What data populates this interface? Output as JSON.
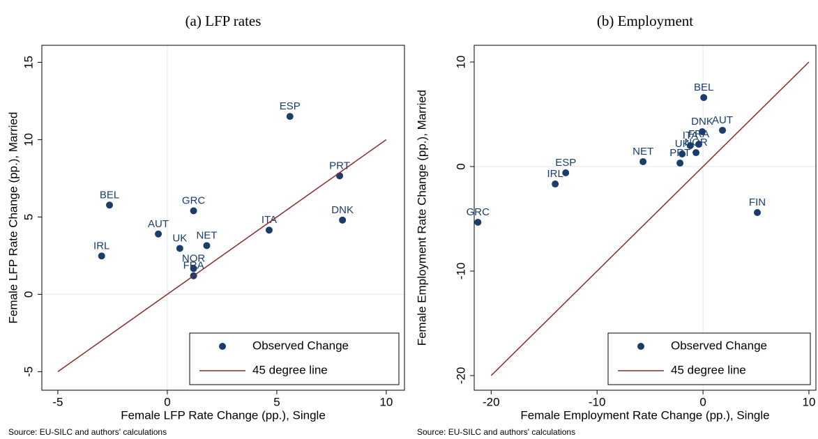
{
  "chart_data": [
    {
      "type": "scatter",
      "title": "(a) LFP rates",
      "xlabel": "Female LFP Rate Change (pp.), Single",
      "ylabel": "Female LFP Rate Change (pp.), Married",
      "note": "Source: EU-SILC and authors' calculations",
      "xlim": [
        -5.73,
        10.83
      ],
      "ylim": [
        -6.2,
        16.1
      ],
      "xticks": [
        -5,
        0,
        5,
        10
      ],
      "yticks": [
        -5,
        0,
        5,
        10,
        15
      ],
      "legend": "bottom-right",
      "series": [
        {
          "name": "Observed Change",
          "color": "#1a3d6b",
          "labels": [
            "ESP",
            "PRT",
            "DNK",
            "ITA",
            "BEL",
            "GRC",
            "AUT",
            "UK",
            "NET",
            "IRL",
            "NOR",
            "FRA"
          ],
          "x": [
            5.6,
            7.87,
            8.0,
            4.65,
            -2.64,
            1.2,
            -0.41,
            0.57,
            1.8,
            -3.0,
            1.2,
            1.2
          ],
          "values": [
            11.5,
            7.66,
            4.8,
            4.15,
            5.77,
            5.4,
            3.9,
            2.97,
            3.15,
            2.48,
            1.67,
            1.2
          ]
        },
        {
          "name": "45 degree line",
          "type": "line",
          "color": "#8b2a2a",
          "x": [
            -5,
            10
          ],
          "values": [
            -5,
            10
          ]
        }
      ]
    },
    {
      "type": "scatter",
      "title": "(b) Employment",
      "xlabel": "Female Employment Rate Change (pp.), Single",
      "ylabel": "Female Employment Rate Change (pp.), Married",
      "note": "Source: EU-SILC and authors' calculations",
      "xlim": [
        -21.6,
        10.66
      ],
      "ylim": [
        -21.4,
        11.6
      ],
      "xticks": [
        -20,
        -10,
        0,
        10
      ],
      "yticks": [
        -20,
        -10,
        0,
        10
      ],
      "legend": "bottom-right",
      "series": [
        {
          "name": "Observed Change",
          "color": "#1a3d6b",
          "labels": [
            "BEL",
            "DNK",
            "AUT",
            "ITA",
            "FRA",
            "UK",
            "NOR",
            "NET",
            "PRT",
            "ESP",
            "IRL",
            "GRC",
            "FIN"
          ],
          "x": [
            0.07,
            -0.07,
            1.84,
            -1.2,
            -0.4,
            -1.97,
            -0.66,
            -5.66,
            -2.17,
            -12.96,
            -13.95,
            -21.25,
            5.13
          ],
          "values": [
            6.6,
            3.33,
            3.47,
            2.0,
            2.13,
            1.2,
            1.33,
            0.47,
            0.33,
            -0.6,
            -1.67,
            -5.33,
            -4.4
          ]
        },
        {
          "name": "45 degree line",
          "type": "line",
          "color": "#8b2a2a",
          "x": [
            -20,
            10
          ],
          "values": [
            -20,
            10
          ]
        }
      ]
    }
  ]
}
